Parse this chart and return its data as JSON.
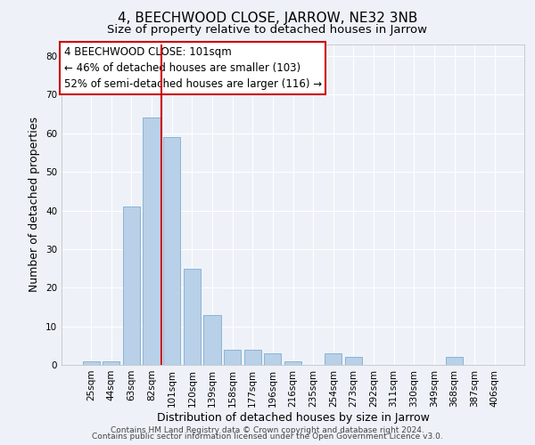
{
  "title": "4, BEECHWOOD CLOSE, JARROW, NE32 3NB",
  "subtitle": "Size of property relative to detached houses in Jarrow",
  "xlabel": "Distribution of detached houses by size in Jarrow",
  "ylabel": "Number of detached properties",
  "bar_labels": [
    "25sqm",
    "44sqm",
    "63sqm",
    "82sqm",
    "101sqm",
    "120sqm",
    "139sqm",
    "158sqm",
    "177sqm",
    "196sqm",
    "216sqm",
    "235sqm",
    "254sqm",
    "273sqm",
    "292sqm",
    "311sqm",
    "330sqm",
    "349sqm",
    "368sqm",
    "387sqm",
    "406sqm"
  ],
  "bar_values": [
    1,
    1,
    41,
    64,
    59,
    25,
    13,
    4,
    4,
    3,
    1,
    0,
    3,
    2,
    0,
    0,
    0,
    0,
    2,
    0,
    0
  ],
  "bar_color": "#b8d0e8",
  "bar_edge_color": "#8ab4d4",
  "vline_x": 3.5,
  "vline_color": "#cc0000",
  "annotation_line1": "4 BEECHWOOD CLOSE: 101sqm",
  "annotation_line2": "← 46% of detached houses are smaller (103)",
  "annotation_line3": "52% of semi-detached houses are larger (116) →",
  "annotation_box_color": "#ffffff",
  "annotation_box_edge_color": "#cc0000",
  "ylim": [
    0,
    83
  ],
  "yticks": [
    0,
    10,
    20,
    30,
    40,
    50,
    60,
    70,
    80
  ],
  "footer_line1": "Contains HM Land Registry data © Crown copyright and database right 2024.",
  "footer_line2": "Contains public sector information licensed under the Open Government Licence v3.0.",
  "bg_color": "#eef2f8",
  "grid_color": "#ffffff",
  "title_fontsize": 11,
  "subtitle_fontsize": 9.5,
  "axis_label_fontsize": 9,
  "tick_fontsize": 7.5,
  "annotation_fontsize": 8.5,
  "footer_fontsize": 6.5
}
